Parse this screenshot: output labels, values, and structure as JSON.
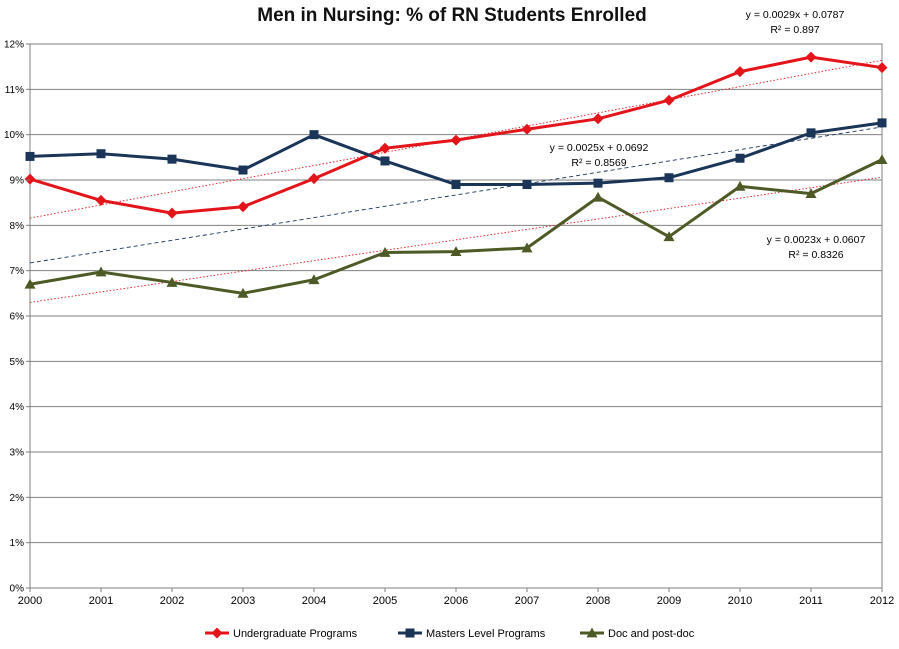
{
  "chart_data": {
    "type": "line",
    "title": "Men in Nursing: % of RN Students Enrolled",
    "x": [
      "2000",
      "2001",
      "2002",
      "2003",
      "2004",
      "2005",
      "2006",
      "2007",
      "2008",
      "2009",
      "2010",
      "2011",
      "2012"
    ],
    "ylim": [
      0,
      12
    ],
    "y_ticks": [
      "0%",
      "1%",
      "2%",
      "3%",
      "4%",
      "5%",
      "6%",
      "7%",
      "8%",
      "9%",
      "10%",
      "11%",
      "12%"
    ],
    "grid": true,
    "legend": "bottom",
    "series": [
      {
        "name": "Undergraduate Programs",
        "color": "#e3151b",
        "marker": "diamond",
        "values": [
          9.02,
          8.55,
          8.27,
          8.41,
          9.03,
          9.7,
          9.88,
          10.12,
          10.35,
          10.76,
          11.39,
          11.71,
          11.48
        ],
        "trendline": {
          "slope": 0.29,
          "intercept": 7.87,
          "label_eq": "y = 0.0029x + 0.0787",
          "label_r2": "R² = 0.897"
        }
      },
      {
        "name": "Masters Level Programs",
        "color": "#1a3558",
        "marker": "square",
        "values": [
          9.52,
          9.58,
          9.46,
          9.22,
          10.0,
          9.42,
          8.9,
          8.9,
          8.93,
          9.05,
          9.48,
          10.04,
          10.26
        ],
        "trendline": {
          "slope": 0.25,
          "intercept": 6.92,
          "label_eq": "y = 0.0025x + 0.0692",
          "label_r2": "R² = 0.8569"
        }
      },
      {
        "name": "Doc and post-doc",
        "color": "#4e5a26",
        "marker": "triangle",
        "values": [
          6.7,
          6.97,
          6.74,
          6.5,
          6.8,
          7.4,
          7.42,
          7.5,
          8.62,
          7.75,
          8.86,
          8.7,
          9.45
        ],
        "trendline": {
          "slope": 0.23,
          "intercept": 6.07,
          "label_eq": "y = 0.0023x + 0.0607",
          "label_r2": "R² = 0.8326"
        }
      }
    ]
  }
}
